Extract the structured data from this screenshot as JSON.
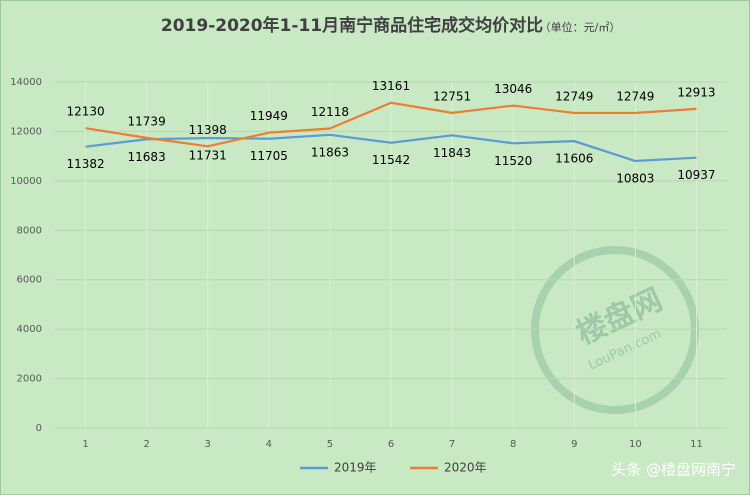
{
  "chart_data": {
    "type": "line",
    "title": "2019-2020年1-11月南宁商品住宅成交均价对比",
    "subtitle": "（单位：元/㎡）",
    "categories": [
      "1",
      "2",
      "3",
      "4",
      "5",
      "6",
      "7",
      "8",
      "9",
      "10",
      "11"
    ],
    "series": [
      {
        "name": "2019年",
        "color": "#5b9bd5",
        "values": [
          11382,
          11683,
          11731,
          11705,
          11863,
          11542,
          11843,
          11520,
          11606,
          10803,
          10937
        ]
      },
      {
        "name": "2020年",
        "color": "#ed7d31",
        "values": [
          12130,
          11739,
          11398,
          11949,
          12118,
          13161,
          12751,
          13046,
          12749,
          12749,
          12913
        ]
      }
    ],
    "ylim": [
      0,
      14000
    ],
    "yticks": [
      0,
      2000,
      4000,
      6000,
      8000,
      10000,
      12000,
      14000
    ],
    "grid": true,
    "legend": "bottom",
    "watermark": {
      "brand": "楼盘网",
      "site": "LouPan.com"
    },
    "footer": "头条 @楼盘网南宁"
  }
}
